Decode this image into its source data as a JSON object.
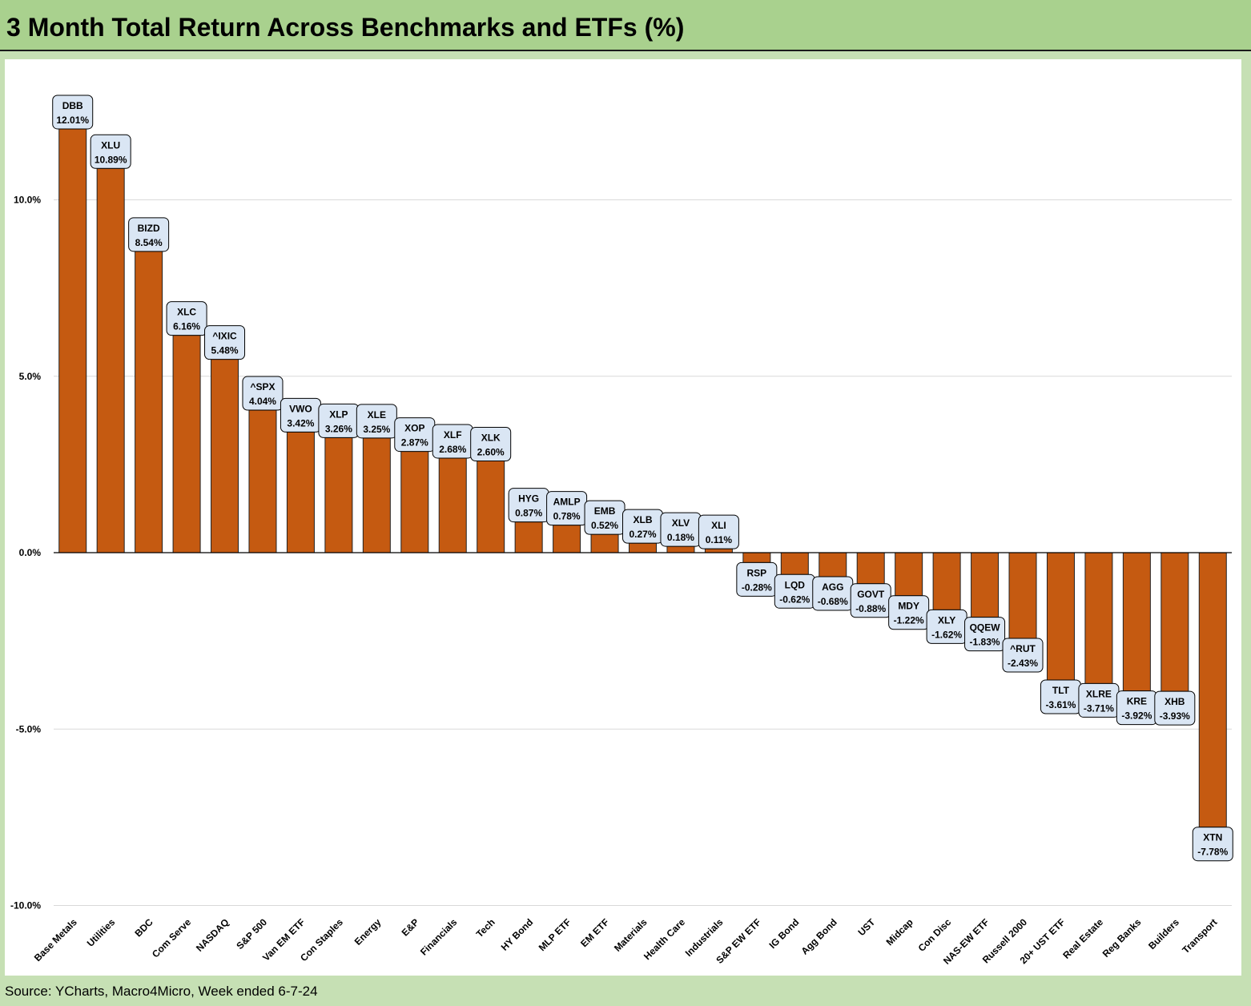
{
  "title": "3 Month Total Return Across Benchmarks and ETFs (%)",
  "source": "Source: YCharts, Macro4Micro, Week ended 6-7-24",
  "colors": {
    "bar": "#c55a11",
    "bar_outline": "#222222",
    "label_fill": "#dae6f4",
    "gridline": "#d9d9d9",
    "title_band": "#a9d18e",
    "background": "#c6e0b4"
  },
  "chart_data": {
    "type": "bar",
    "title": "3 Month Total Return Across Benchmarks and ETFs (%)",
    "xlabel": "",
    "ylabel": "",
    "ylim": [
      -10,
      12.5
    ],
    "yticks": [
      -10,
      -5,
      0,
      5,
      10
    ],
    "ytick_labels": [
      "-10.0%",
      "-5.0%",
      "0.0%",
      "5.0%",
      "10.0%"
    ],
    "grid": true,
    "categories": [
      "Base Metals",
      "Utilities",
      "BDC",
      "Com Serve",
      "NASDAQ",
      "S&P 500",
      "Van EM ETF",
      "Con Staples",
      "Energy",
      "E&P",
      "Financials",
      "Tech",
      "HY Bond",
      "MLP ETF",
      "EM ETF",
      "Materials",
      "Health Care",
      "Industrials",
      "S&P EW ETF",
      "IG Bond",
      "Agg Bond",
      "UST",
      "Midcap",
      "Con Disc",
      "NAS-EW ETF",
      "Russell 2000",
      "20+ UST ETF",
      "Real Estate",
      "Reg Banks",
      "Builders",
      "Transport"
    ],
    "tickers": [
      "DBB",
      "XLU",
      "BIZD",
      "XLC",
      "^IXIC",
      "^SPX",
      "VWO",
      "XLP",
      "XLE",
      "XOP",
      "XLF",
      "XLK",
      "HYG",
      "AMLP",
      "EMB",
      "XLB",
      "XLV",
      "XLI",
      "RSP",
      "LQD",
      "AGG",
      "GOVT",
      "MDY",
      "XLY",
      "QQEW",
      "^RUT",
      "TLT",
      "XLRE",
      "KRE",
      "XHB",
      "XTN"
    ],
    "value_labels": [
      "12.01%",
      "10.89%",
      "8.54%",
      "6.16%",
      "5.48%",
      "4.04%",
      "3.42%",
      "3.26%",
      "3.25%",
      "2.87%",
      "2.68%",
      "2.60%",
      "0.87%",
      "0.78%",
      "0.52%",
      "0.27%",
      "0.18%",
      "0.11%",
      "-0.28%",
      "-0.62%",
      "-0.68%",
      "-0.88%",
      "-1.22%",
      "-1.62%",
      "-1.83%",
      "-2.43%",
      "-3.61%",
      "-3.71%",
      "-3.92%",
      "-3.93%",
      "-7.78%"
    ],
    "values": [
      12.01,
      10.89,
      8.54,
      6.16,
      5.48,
      4.04,
      3.42,
      3.26,
      3.25,
      2.87,
      2.68,
      2.6,
      0.87,
      0.78,
      0.52,
      0.27,
      0.18,
      0.11,
      -0.28,
      -0.62,
      -0.68,
      -0.88,
      -1.22,
      -1.62,
      -1.83,
      -2.43,
      -3.61,
      -3.71,
      -3.92,
      -3.93,
      -7.78
    ]
  }
}
